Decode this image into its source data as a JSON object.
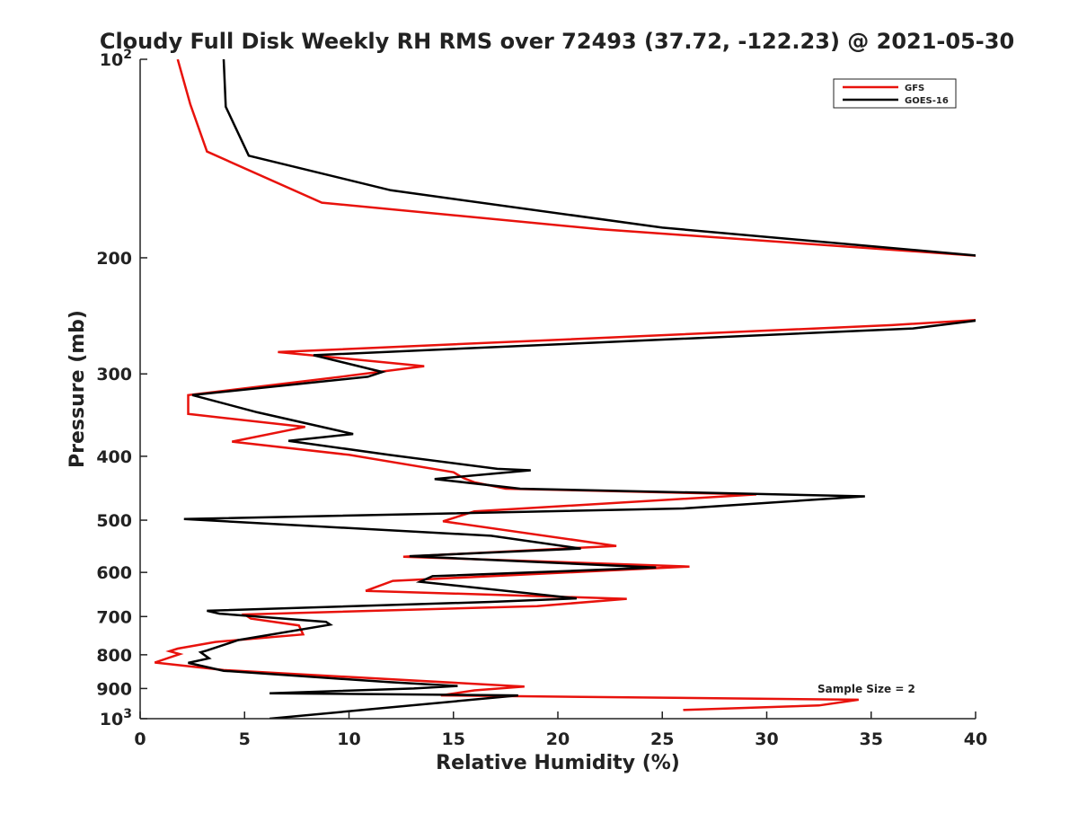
{
  "chart_data": {
    "type": "line",
    "title": "Cloudy Full Disk Weekly RH RMS over 72493 (37.72, -122.23) @ 2021-05-30",
    "xlabel": "Relative Humidity (%)",
    "ylabel": "Pressure (mb)",
    "xlim": [
      0,
      40
    ],
    "ylim": [
      100,
      1000
    ],
    "yscale": "log",
    "yreversed": false,
    "grid": false,
    "legend_position": "top-right",
    "x_ticks": [
      "0",
      "5",
      "10",
      "15",
      "20",
      "25",
      "30",
      "35",
      "40"
    ],
    "y_ticks": [
      {
        "value": 100,
        "base": "10",
        "exp": "2"
      },
      {
        "value": 200,
        "label": "200"
      },
      {
        "value": 300,
        "label": "300"
      },
      {
        "value": 400,
        "label": "400"
      },
      {
        "value": 500,
        "label": "500"
      },
      {
        "value": 600,
        "label": "600"
      },
      {
        "value": 700,
        "label": "700"
      },
      {
        "value": 800,
        "label": "800"
      },
      {
        "value": 900,
        "label": "900"
      },
      {
        "value": 1000,
        "base": "10",
        "exp": "3"
      }
    ],
    "series": [
      {
        "name": "GFS",
        "color": "#e8120c",
        "points": [
          [
            1.8,
            100
          ],
          [
            2.4,
            117
          ],
          [
            3.2,
            138
          ],
          [
            8.7,
            165
          ],
          [
            22.0,
            181
          ],
          [
            40.5,
            199
          ],
          [
            40.5,
            248
          ],
          [
            36.0,
            253
          ],
          [
            6.6,
            278
          ],
          [
            13.6,
            292
          ],
          [
            10.0,
            302
          ],
          [
            2.3,
            323
          ],
          [
            2.3,
            345
          ],
          [
            7.9,
            361
          ],
          [
            4.4,
            380
          ],
          [
            10.0,
            398
          ],
          [
            15.0,
            423
          ],
          [
            15.5,
            432
          ],
          [
            16.0,
            438
          ],
          [
            17.5,
            448
          ],
          [
            29.5,
            457
          ],
          [
            16.0,
            485
          ],
          [
            14.5,
            502
          ],
          [
            22.8,
            547
          ],
          [
            12.6,
            568
          ],
          [
            26.3,
            588
          ],
          [
            12.1,
            618
          ],
          [
            10.8,
            640
          ],
          [
            23.3,
            658
          ],
          [
            19.0,
            675
          ],
          [
            5.0,
            695
          ],
          [
            5.3,
            705
          ],
          [
            7.6,
            722
          ],
          [
            7.8,
            745
          ],
          [
            3.6,
            765
          ],
          [
            1.8,
            783
          ],
          [
            1.4,
            790
          ],
          [
            1.9,
            798
          ],
          [
            0.7,
            822
          ],
          [
            4.0,
            844
          ],
          [
            18.4,
            894
          ],
          [
            16.0,
            906
          ],
          [
            14.4,
            922
          ],
          [
            34.4,
            936
          ],
          [
            32.5,
            955
          ],
          [
            26.0,
            970
          ]
        ]
      },
      {
        "name": "GOES-16",
        "color": "#000000",
        "points": [
          [
            4.0,
            100
          ],
          [
            4.1,
            118
          ],
          [
            5.2,
            140
          ],
          [
            12.0,
            158
          ],
          [
            25.0,
            180
          ],
          [
            40.5,
            199
          ],
          [
            40.5,
            248
          ],
          [
            37.0,
            256
          ],
          [
            8.3,
            281
          ],
          [
            11.6,
            298
          ],
          [
            10.9,
            303
          ],
          [
            2.5,
            323
          ],
          [
            5.6,
            343
          ],
          [
            10.2,
            370
          ],
          [
            7.1,
            379
          ],
          [
            11.9,
            398
          ],
          [
            17.1,
            418
          ],
          [
            18.7,
            420
          ],
          [
            14.1,
            433
          ],
          [
            18.2,
            448
          ],
          [
            34.7,
            460
          ],
          [
            26.0,
            480
          ],
          [
            2.1,
            498
          ],
          [
            16.8,
            528
          ],
          [
            21.1,
            552
          ],
          [
            12.9,
            567
          ],
          [
            24.7,
            590
          ],
          [
            14.0,
            608
          ],
          [
            13.4,
            620
          ],
          [
            20.9,
            657
          ],
          [
            16.8,
            665
          ],
          [
            3.2,
            686
          ],
          [
            3.8,
            693
          ],
          [
            8.9,
            713
          ],
          [
            9.1,
            720
          ],
          [
            4.7,
            760
          ],
          [
            3.2,
            788
          ],
          [
            2.9,
            793
          ],
          [
            3.3,
            810
          ],
          [
            2.3,
            823
          ],
          [
            4.0,
            846
          ],
          [
            11.9,
            880
          ],
          [
            15.2,
            892
          ],
          [
            13.1,
            900
          ],
          [
            6.2,
            915
          ],
          [
            18.1,
            922
          ],
          [
            6.2,
            1000
          ]
        ]
      }
    ],
    "annotation": "Sample Size = 2"
  }
}
